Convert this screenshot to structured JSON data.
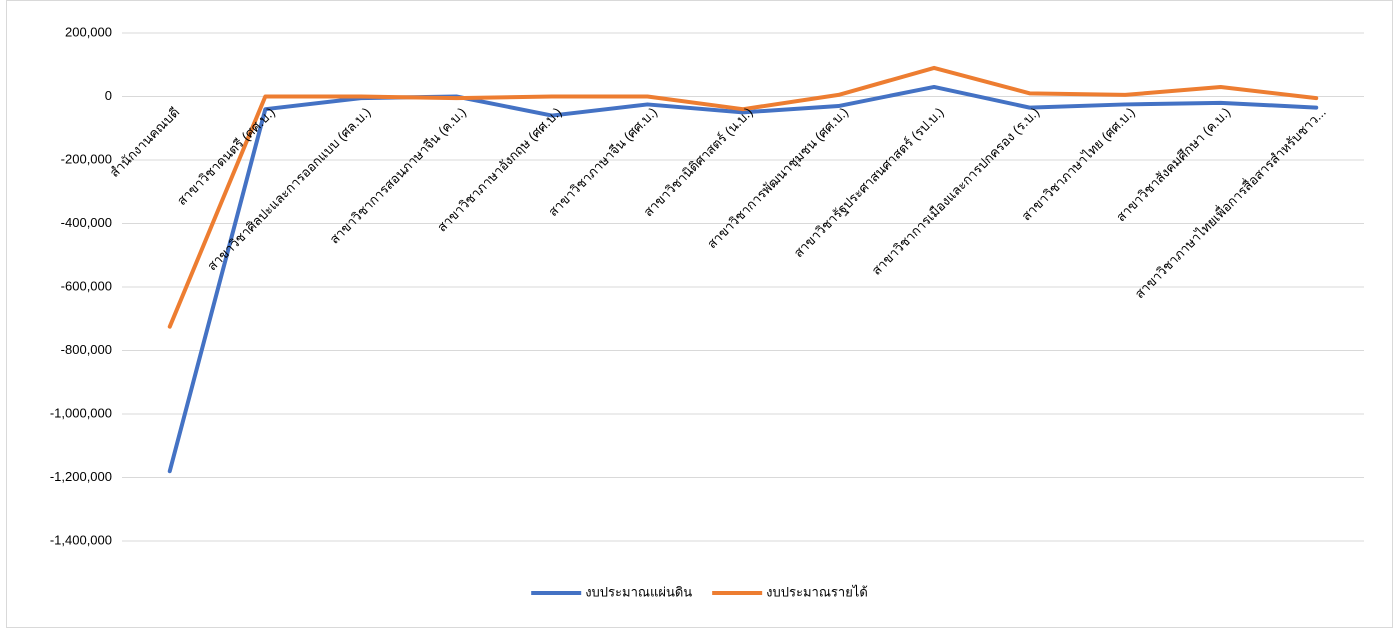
{
  "chart_data": {
    "type": "line",
    "categories": [
      "สำนักงานคณบดี",
      "สาขาวิชาดนตรี (ศศ.บ.)",
      "สาขาวิชาศิลปะและการออกแบบ (ศล.บ.)",
      "สาขาวิชาการสอนภาษาจีน (ค.บ.)",
      "สาขาวิชาภาษาอังกฤษ (ศศ.บ.)",
      "สาขาวิชาภาษาจีน (ศศ.บ.)",
      "สาขาวิชานิติศาสตร์ (น.บ.)",
      "สาขาวิชาการพัฒนาชุมชน (ศศ.บ.)",
      "สาขาวิชารัฐประศาสนศาสตร์ (รป.บ.)",
      "สาขาวิชาการเมืองและการปกครอง (ร.บ.)",
      "สาขาวิชาภาษาไทย (ศศ.บ.)",
      "สาขาวิชาสังคมศึกษา (ค.บ.)",
      "สาขาวิชาภาษาไทยเพื่อการสื่อสารสำหรับชาว..."
    ],
    "series": [
      {
        "name": "งบประมาณแผ่นดิน",
        "color": "#4472c4",
        "values": [
          -1180000,
          -40000,
          -5000,
          0,
          -60000,
          -25000,
          -50000,
          -30000,
          30000,
          -35000,
          -25000,
          -20000,
          -35000
        ]
      },
      {
        "name": "งบประมาณรายได้",
        "color": "#ed7d31",
        "values": [
          -725000,
          0,
          0,
          -5000,
          0,
          0,
          -40000,
          5000,
          90000,
          10000,
          5000,
          30000,
          -5000
        ]
      }
    ],
    "ylim": [
      -1400000,
      200000
    ],
    "yticks": [
      {
        "value": -1400000,
        "label": "-1,400,000"
      },
      {
        "value": -1200000,
        "label": "-1,200,000"
      },
      {
        "value": -1000000,
        "label": "-1,000,000"
      },
      {
        "value": -800000,
        "label": "-800,000"
      },
      {
        "value": -600000,
        "label": "-600,000"
      },
      {
        "value": -400000,
        "label": "-400,000"
      },
      {
        "value": -200000,
        "label": "-200,000"
      },
      0,
      {
        "value": 200000,
        "label": "200,000"
      }
    ],
    "grid": true,
    "legend": "bottom"
  }
}
